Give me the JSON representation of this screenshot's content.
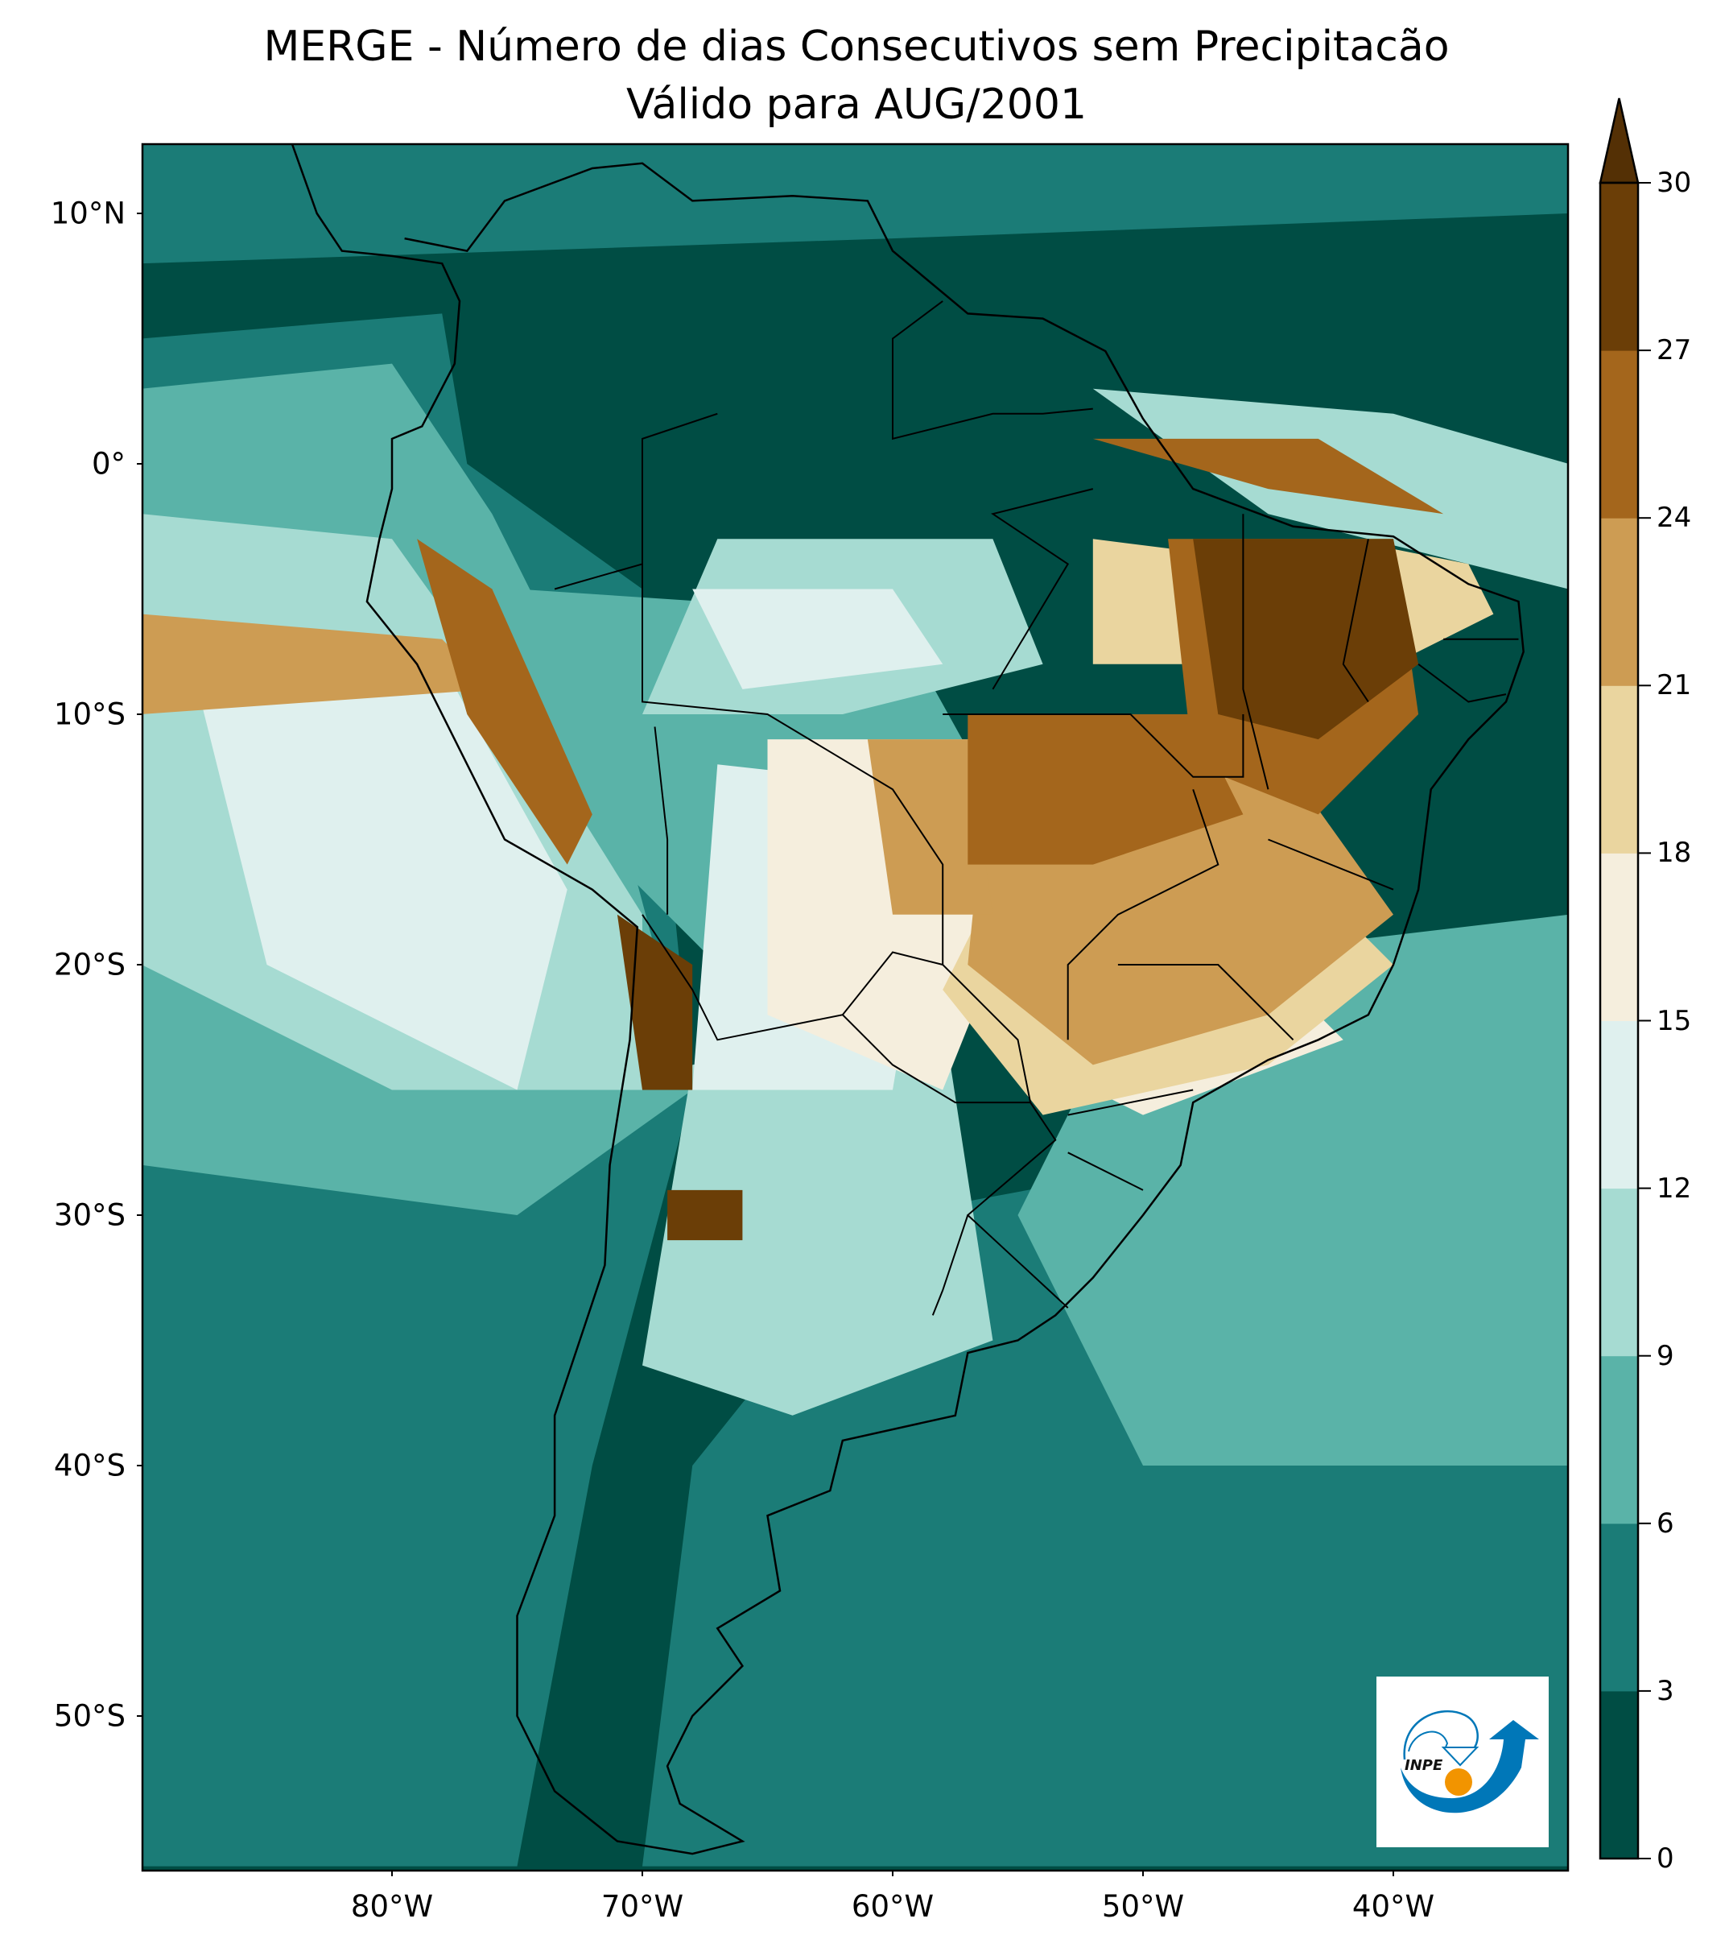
{
  "title": {
    "line1": "MERGE - Número de dias Consecutivos sem Precipitacão",
    "line2": "Válido para AUG/2001"
  },
  "map": {
    "lat_ticks": [
      "10°N",
      "0°",
      "10°S",
      "20°S",
      "30°S",
      "40°S",
      "50°S"
    ],
    "lat_values": [
      10,
      0,
      -10,
      -20,
      -30,
      -40,
      -50
    ],
    "lon_ticks": [
      "80°W",
      "70°W",
      "60°W",
      "50°W",
      "40°W"
    ],
    "lon_values": [
      -80,
      -70,
      -60,
      -50,
      -40
    ],
    "extent": {
      "lon": [
        -90,
        -33
      ],
      "lat": [
        -56.2,
        12.8
      ]
    },
    "coastline_color": "#000000"
  },
  "colorbar": {
    "ticks": [
      "0",
      "3",
      "6",
      "9",
      "12",
      "15",
      "18",
      "21",
      "24",
      "27",
      "30"
    ],
    "levels": [
      0,
      3,
      6,
      9,
      12,
      15,
      18,
      21,
      24,
      27,
      30
    ],
    "colors": [
      "#004d44",
      "#1b7c77",
      "#5ab3a8",
      "#a6dbd2",
      "#dff0ee",
      "#f5eedd",
      "#ead59f",
      "#cd9c53",
      "#a4661c",
      "#6b3e07"
    ],
    "extend_color": "#543005",
    "extend": "max"
  },
  "logo": {
    "text": "INPE",
    "blue": "#0077b8",
    "orange": "#f29400"
  }
}
